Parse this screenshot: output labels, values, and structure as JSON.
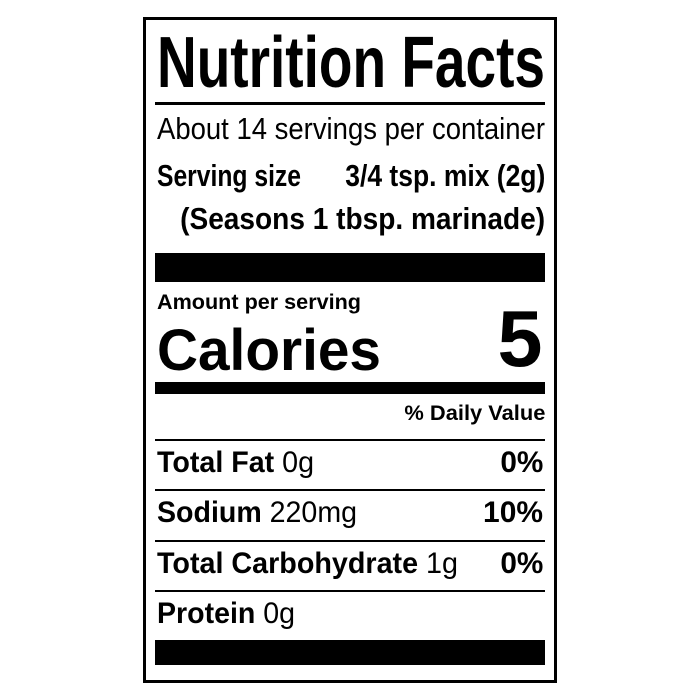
{
  "title": "Nutrition Facts",
  "servings_per_container": "About 14 servings per container",
  "serving_size": {
    "label": "Serving size",
    "value": "3/4 tsp. mix (2g)",
    "note": "(Seasons 1 tbsp. marinade)"
  },
  "amount_per_serving": "Amount per serving",
  "calories": {
    "label": "Calories",
    "value": "5"
  },
  "daily_value_header": "% Daily Value",
  "nutrients": [
    {
      "name": "Total Fat",
      "amount": "0g",
      "dv": "0%"
    },
    {
      "name": "Sodium",
      "amount": "220mg",
      "dv": "10%"
    },
    {
      "name": "Total Carbohydrate",
      "amount": "1g",
      "dv": "0%"
    },
    {
      "name": "Protein",
      "amount": "0g",
      "dv": ""
    }
  ]
}
